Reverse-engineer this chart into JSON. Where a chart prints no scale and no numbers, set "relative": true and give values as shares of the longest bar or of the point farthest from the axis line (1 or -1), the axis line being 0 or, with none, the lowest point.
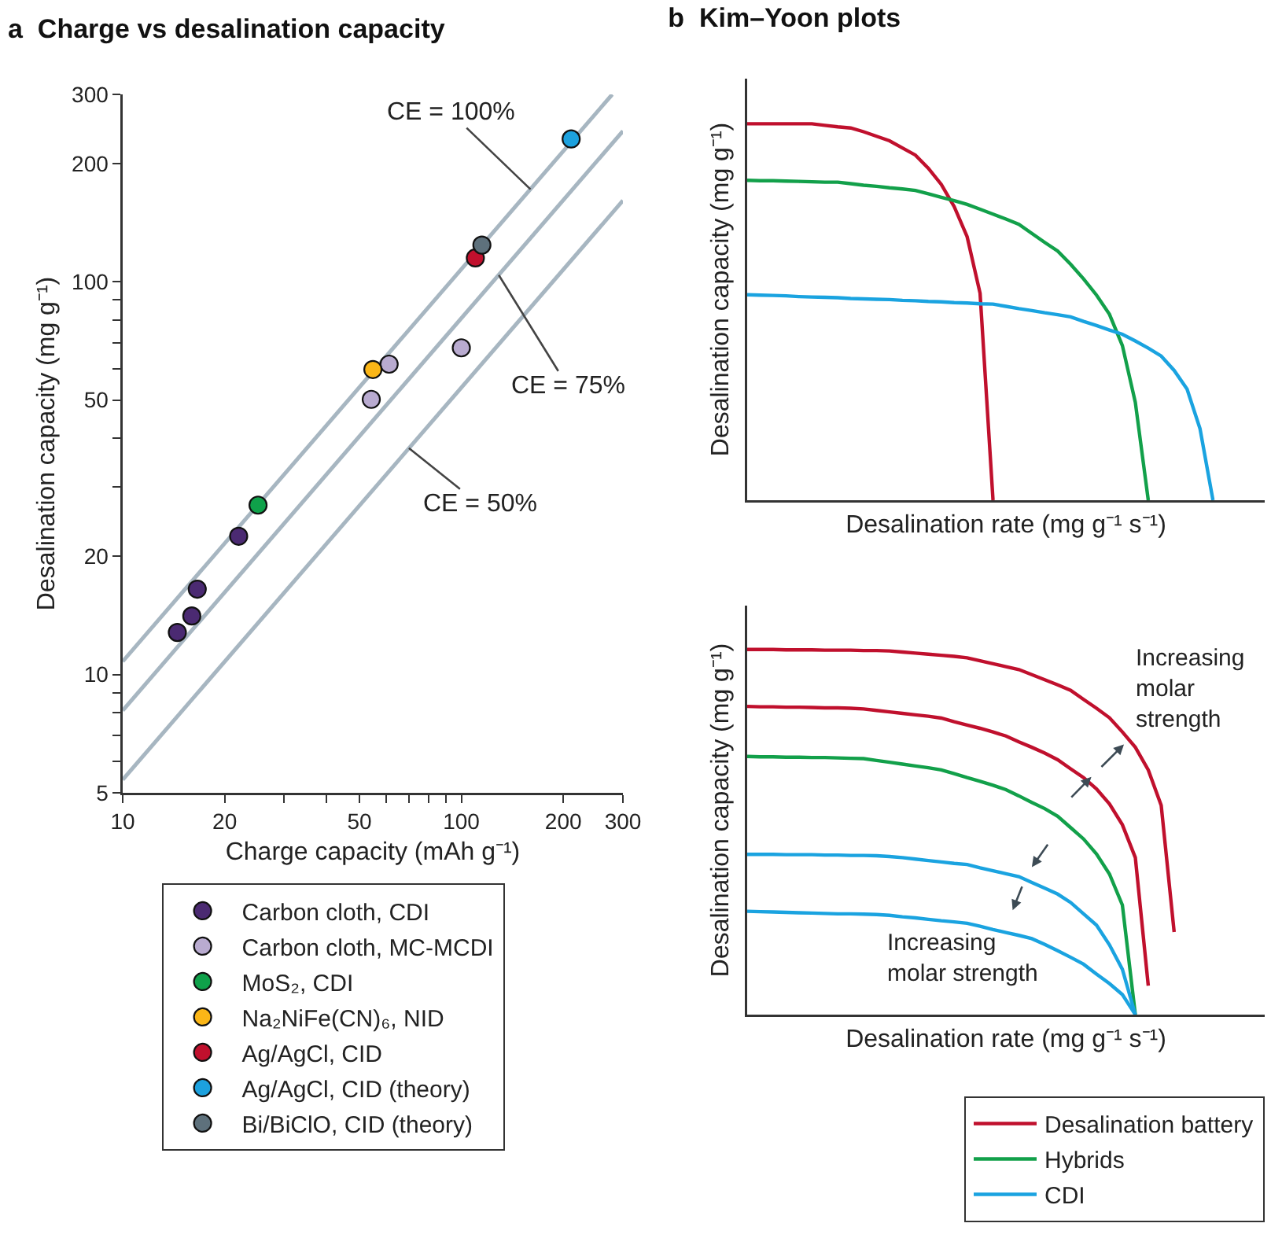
{
  "chart_data": [
    {
      "type": "scatter",
      "title": "a  Charge vs desalination capacity",
      "xlabel": "Charge capacity (mAh g⁻¹)",
      "ylabel": "Desalination capacity (mg g⁻¹)",
      "log": "xy",
      "xlim": [
        10,
        300
      ],
      "ylim": [
        5,
        300
      ],
      "xticks": [
        10,
        20,
        {
          "value": 30,
          "label": null
        },
        {
          "value": 40,
          "label": null
        },
        50,
        {
          "value": 60,
          "label": null
        },
        {
          "value": 70,
          "label": null
        },
        {
          "value": 80,
          "label": null
        },
        {
          "value": 90,
          "label": null
        },
        100,
        200,
        300
      ],
      "yticks": [
        5,
        {
          "value": 6,
          "label": null
        },
        {
          "value": 7,
          "label": null
        },
        {
          "value": 8,
          "label": null
        },
        {
          "value": 9,
          "label": null
        },
        10,
        20,
        {
          "value": 30,
          "label": null
        },
        {
          "value": 40,
          "label": null
        },
        50,
        {
          "value": 60,
          "label": null
        },
        {
          "value": 70,
          "label": null
        },
        {
          "value": 80,
          "label": null
        },
        {
          "value": 90,
          "label": null
        },
        100,
        200,
        300
      ],
      "grid": false,
      "marker": "circle",
      "legend": "bottom",
      "series": [
        {
          "type": "line",
          "marker": "none",
          "color": "#a7b6c1",
          "x": [
            10,
            279
          ],
          "values": [
            10.8,
            300
          ]
        },
        {
          "type": "line",
          "marker": "none",
          "color": "#a7b6c1",
          "x": [
            10,
            300
          ],
          "values": [
            8.1,
            242
          ]
        },
        {
          "type": "line",
          "marker": "none",
          "color": "#a7b6c1",
          "x": [
            10,
            300
          ],
          "values": [
            5.4,
            161
          ]
        },
        {
          "name": "Carbon cloth, CDI",
          "color": "#4b2a72",
          "x": [
            14.5,
            16.0,
            16.6,
            22.0
          ],
          "values": [
            12.8,
            14.1,
            16.5,
            22.5
          ]
        },
        {
          "name": "Carbon cloth, MC-MCDI",
          "color": "#b9abd0",
          "x": [
            54.2,
            61.2,
            100
          ],
          "values": [
            50.2,
            61.7,
            67.9
          ]
        },
        {
          "name": "MoS₂, CDI",
          "color": "#0fa14a",
          "x": [
            25.1
          ],
          "values": [
            27.0
          ]
        },
        {
          "name": "Na₂NiFe(CN)₆, NID",
          "color": "#fbb617",
          "x": [
            54.8
          ],
          "values": [
            59.8
          ]
        },
        {
          "name": "Ag/AgCl, CID",
          "color": "#c0102d",
          "x": [
            110
          ],
          "values": [
            115
          ]
        },
        {
          "name": "Ag/AgCl, CID (theory)",
          "color": "#1ca1de",
          "x": [
            211
          ],
          "values": [
            231
          ]
        },
        {
          "name": "Bi/BiClO, CID (theory)",
          "color": "#5e717c",
          "x": [
            115
          ],
          "values": [
            124
          ]
        }
      ],
      "annotations": [
        {
          "text": "CE = 100%",
          "x": 160,
          "y": 172
        },
        {
          "text": "CE = 75%",
          "x": 129,
          "y": 104
        },
        {
          "text": "CE = 50%",
          "x": 70,
          "y": 37.7
        }
      ]
    },
    {
      "type": "line",
      "title": "b  Kim–Yoon plots",
      "xlabel": "Desalination rate (mg g⁻¹ s⁻¹)",
      "ylabel": "Desalination capacity (mg g⁻¹)",
      "relative": true,
      "legend": false,
      "categories": [
        null,
        null,
        null,
        null,
        null,
        null,
        null,
        null,
        null,
        null,
        null,
        null,
        null,
        null,
        null,
        null,
        null,
        null,
        null,
        null,
        null,
        null,
        null,
        null,
        null,
        null,
        null,
        null,
        null,
        null,
        null,
        null,
        null,
        null,
        null,
        null,
        null,
        null,
        null,
        null,
        null
      ],
      "series": [
        {
          "color": "#c0102d",
          "values": [
            1,
            1,
            1,
            1,
            1,
            1,
            0.996,
            0.992,
            0.989,
            0.979,
            0.967,
            0.955,
            0.936,
            0.917,
            0.882,
            0.839,
            0.78,
            0.7,
            0.55,
            0,
            null,
            null,
            null,
            null,
            null,
            null,
            null,
            null,
            null,
            null,
            null,
            null,
            null,
            null,
            null,
            null,
            null,
            null,
            null,
            null,
            null
          ]
        },
        {
          "color": "#12a04a",
          "values": [
            0.85,
            0.849,
            0.849,
            0.848,
            0.847,
            0.846,
            0.845,
            0.845,
            0.841,
            0.837,
            0.834,
            0.83,
            0.827,
            0.823,
            0.814,
            0.805,
            0.796,
            0.786,
            0.773,
            0.76,
            0.747,
            0.733,
            0.709,
            0.685,
            0.662,
            0.627,
            0.588,
            0.545,
            0.494,
            0.411,
            0.26,
            0,
            null,
            null,
            null,
            null,
            null,
            null,
            null,
            null,
            null
          ]
        },
        {
          "color": "#1aa3e0",
          "values": [
            0.546,
            0.545,
            0.544,
            0.543,
            0.541,
            0.54,
            0.539,
            0.538,
            0.536,
            0.535,
            0.534,
            0.533,
            0.531,
            0.53,
            0.528,
            0.527,
            0.525,
            0.524,
            0.522,
            0.521,
            0.515,
            0.509,
            0.504,
            0.498,
            0.493,
            0.487,
            0.475,
            0.464,
            0.452,
            0.441,
            0.423,
            0.404,
            0.383,
            0.345,
            0.295,
            0.19,
            0,
            null,
            null,
            null,
            null
          ]
        }
      ]
    },
    {
      "type": "line",
      "xlabel": "Desalination rate (mg g⁻¹ s⁻¹)",
      "ylabel": "Desalination capacity (mg g⁻¹)",
      "relative": true,
      "legend": "bottom",
      "categories": [
        null,
        null,
        null,
        null,
        null,
        null,
        null,
        null,
        null,
        null,
        null,
        null,
        null,
        null,
        null,
        null,
        null,
        null,
        null,
        null,
        null,
        null,
        null,
        null,
        null,
        null,
        null,
        null,
        null,
        null,
        null,
        null,
        null,
        null,
        null,
        null,
        null,
        null,
        null,
        null,
        null
      ],
      "series": [
        {
          "name": "Desalination battery",
          "color": "#c0102d",
          "values": [
            1,
            1,
            1,
            0.999,
            0.999,
            0.999,
            0.998,
            0.998,
            0.998,
            0.997,
            0.997,
            0.996,
            0.993,
            0.99,
            0.987,
            0.984,
            0.981,
            0.977,
            0.969,
            0.961,
            0.953,
            0.945,
            0.931,
            0.917,
            0.903,
            0.888,
            0.863,
            0.839,
            0.813,
            0.774,
            0.732,
            0.67,
            0.573,
            0.226,
            null,
            null,
            null,
            null,
            null,
            null,
            null
          ]
        },
        {
          "color": "#c0102d",
          "values": [
            0.844,
            0.843,
            0.843,
            0.842,
            0.842,
            0.841,
            0.84,
            0.84,
            0.839,
            0.837,
            0.833,
            0.829,
            0.825,
            0.821,
            0.817,
            0.812,
            0.802,
            0.793,
            0.784,
            0.774,
            0.763,
            0.747,
            0.732,
            0.716,
            0.698,
            0.673,
            0.649,
            0.618,
            0.577,
            0.52,
            0.43,
            0.079,
            null,
            null,
            null,
            null,
            null,
            null,
            null,
            null,
            null
          ]
        },
        {
          "name": "Hybrids",
          "color": "#12a04a",
          "values": [
            0.707,
            0.706,
            0.706,
            0.705,
            0.705,
            0.704,
            0.704,
            0.703,
            0.702,
            0.701,
            0.696,
            0.691,
            0.686,
            0.681,
            0.676,
            0.67,
            0.66,
            0.649,
            0.639,
            0.628,
            0.616,
            0.599,
            0.581,
            0.564,
            0.543,
            0.512,
            0.481,
            0.44,
            0.385,
            0.3,
            0,
            null,
            null,
            null,
            null,
            null,
            null,
            null,
            null,
            null,
            null
          ]
        },
        {
          "name": "CDI",
          "color": "#1aa3e0",
          "values": [
            0.439,
            0.439,
            0.439,
            0.438,
            0.438,
            0.438,
            0.437,
            0.437,
            0.436,
            0.436,
            0.435,
            0.433,
            0.43,
            0.426,
            0.422,
            0.418,
            0.414,
            0.411,
            0.402,
            0.394,
            0.386,
            0.378,
            0.362,
            0.346,
            0.33,
            0.307,
            0.276,
            0.245,
            0.191,
            0.124,
            0,
            null,
            null,
            null,
            null,
            null,
            null,
            null,
            null,
            null,
            null
          ]
        },
        {
          "color": "#1aa3e0",
          "values": [
            0.283,
            0.282,
            0.281,
            0.28,
            0.279,
            0.278,
            0.277,
            0.276,
            0.276,
            0.275,
            0.274,
            0.272,
            0.268,
            0.265,
            0.261,
            0.257,
            0.254,
            0.25,
            0.242,
            0.233,
            0.225,
            0.217,
            0.208,
            0.192,
            0.175,
            0.157,
            0.138,
            0.111,
            0.085,
            0.055,
            0,
            null,
            null,
            null,
            null,
            null,
            null,
            null,
            null,
            null,
            null
          ]
        }
      ],
      "annotations": [
        "Increasing\nmolar\nstrength",
        "Increasing\nmolar strength"
      ]
    }
  ]
}
